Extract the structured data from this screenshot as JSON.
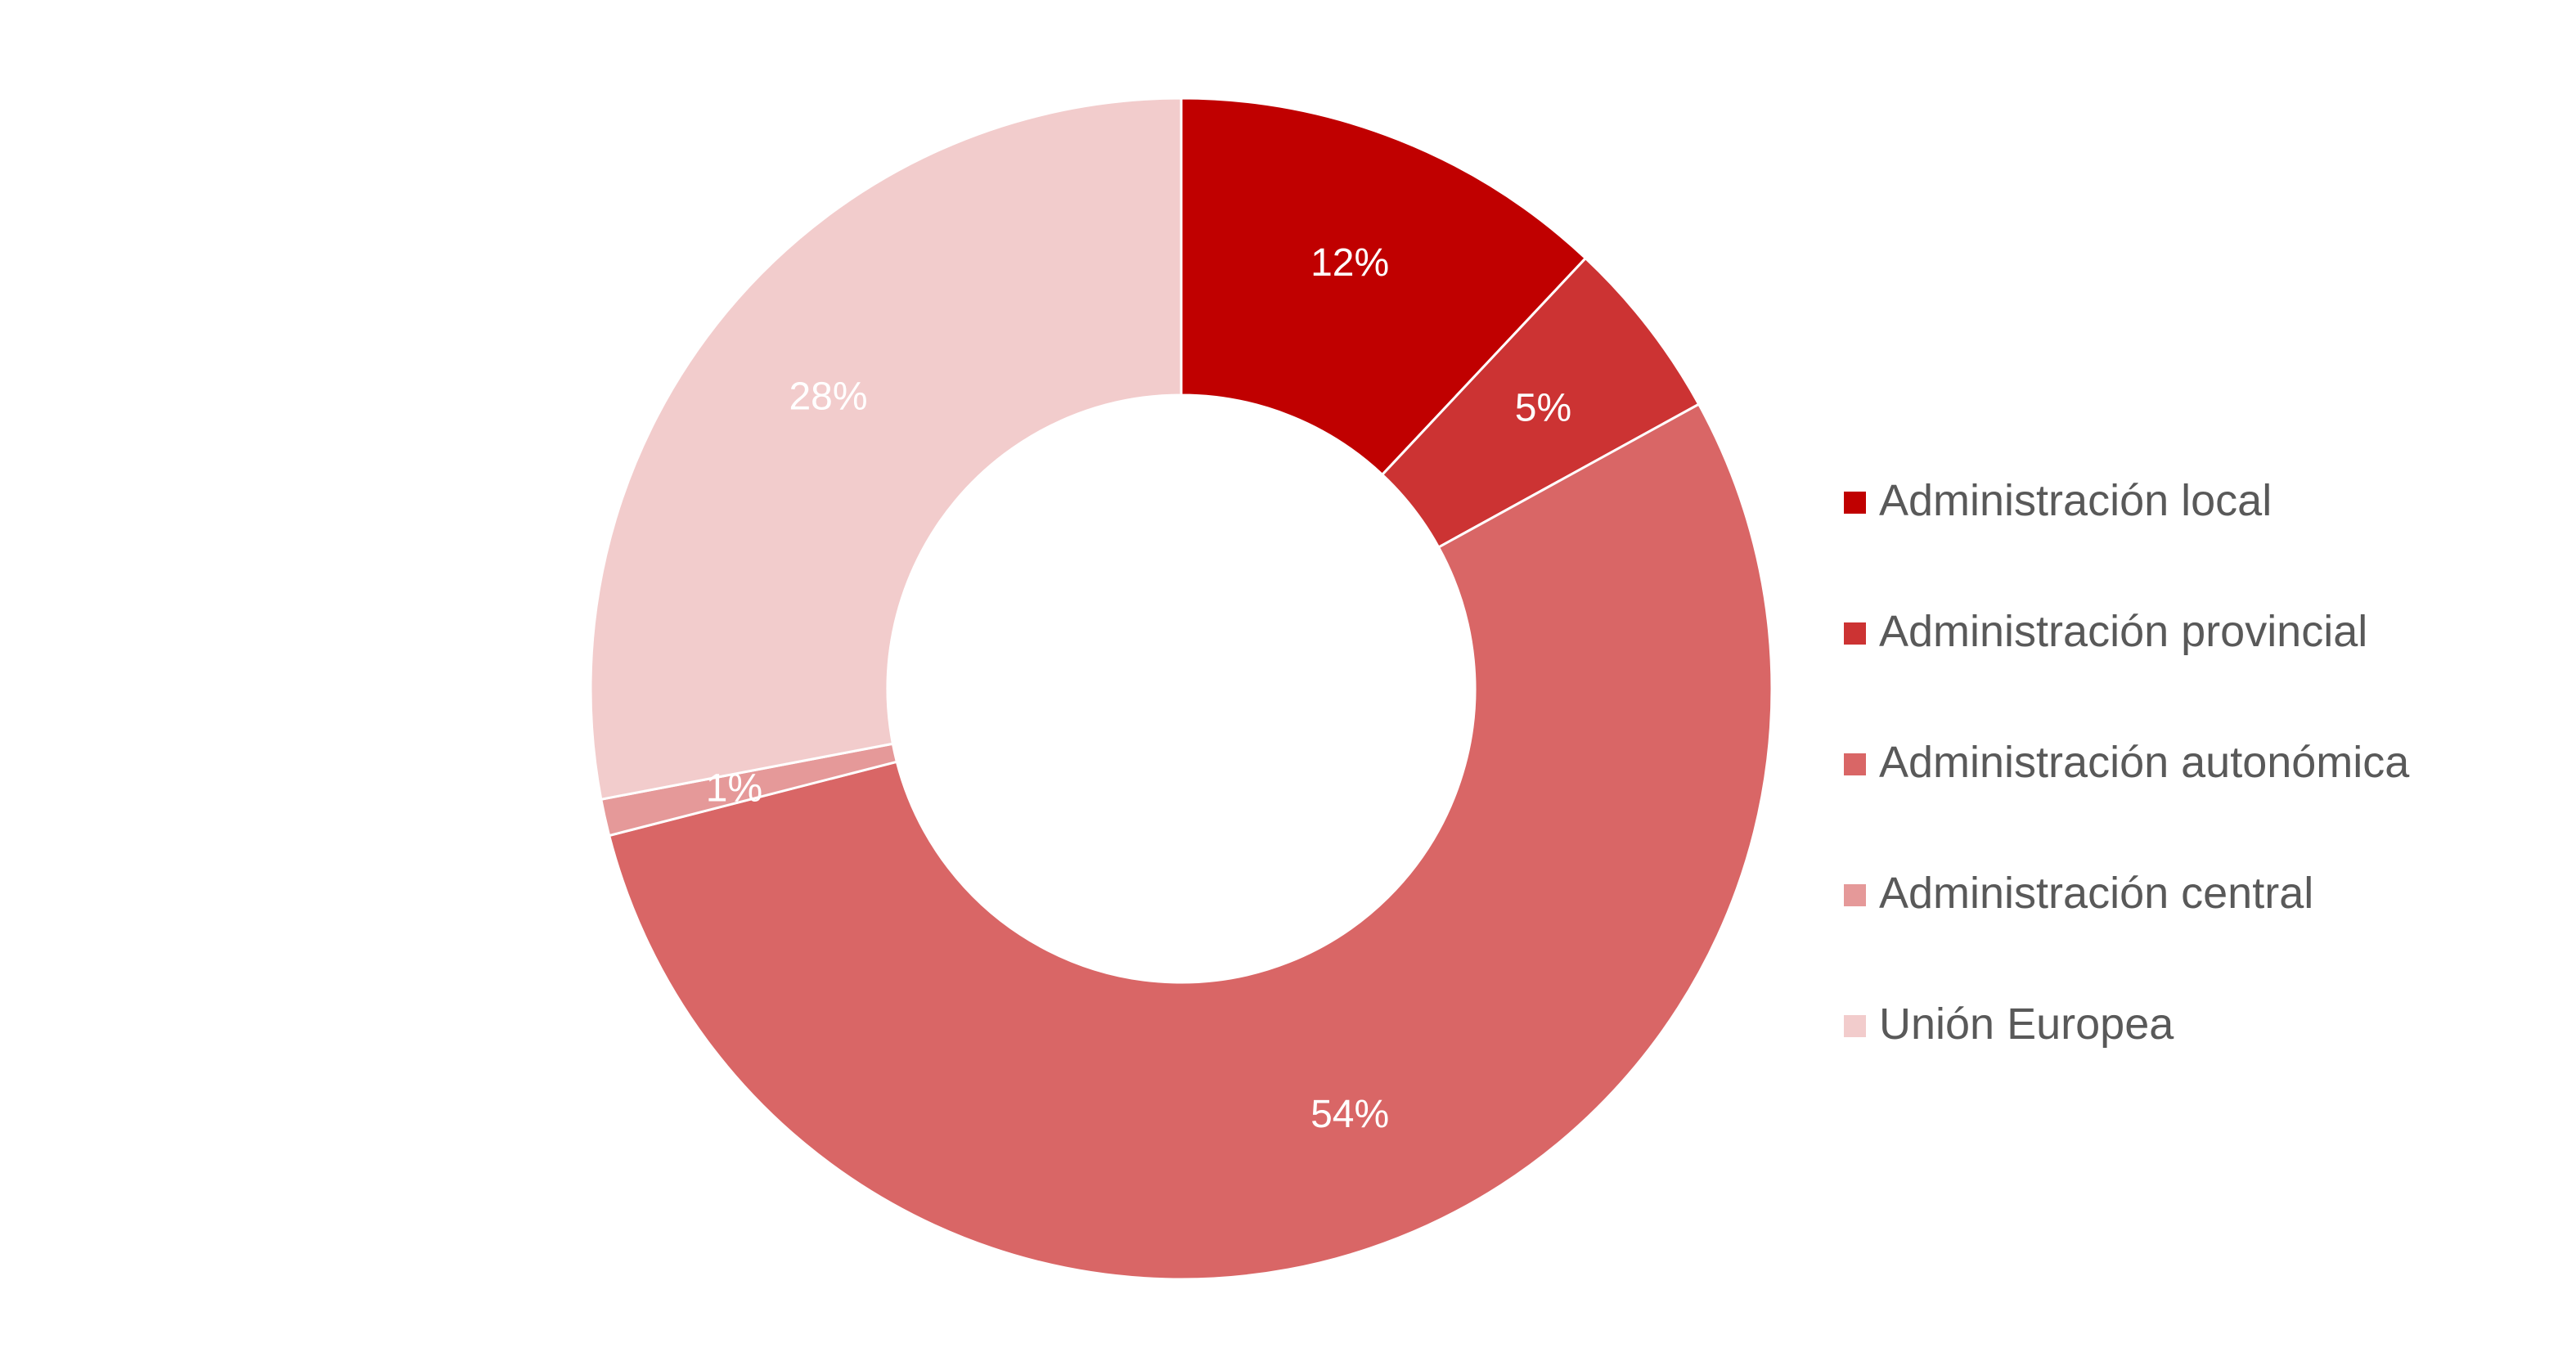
{
  "chart_data": {
    "type": "pie",
    "variant": "donut",
    "categories": [
      "Administración local",
      "Administración provincial",
      "Administración autonómica",
      "Administración central",
      "Unión Europea"
    ],
    "values": [
      12,
      5,
      54,
      1,
      28
    ],
    "data_labels": [
      "12%",
      "5%",
      "54%",
      "1%",
      "28%"
    ],
    "colors": [
      "#C00000",
      "#CC3333",
      "#D96666",
      "#E59999",
      "#F2CCCC"
    ],
    "legend_position": "right",
    "start_angle_deg": 0,
    "direction": "clockwise"
  }
}
